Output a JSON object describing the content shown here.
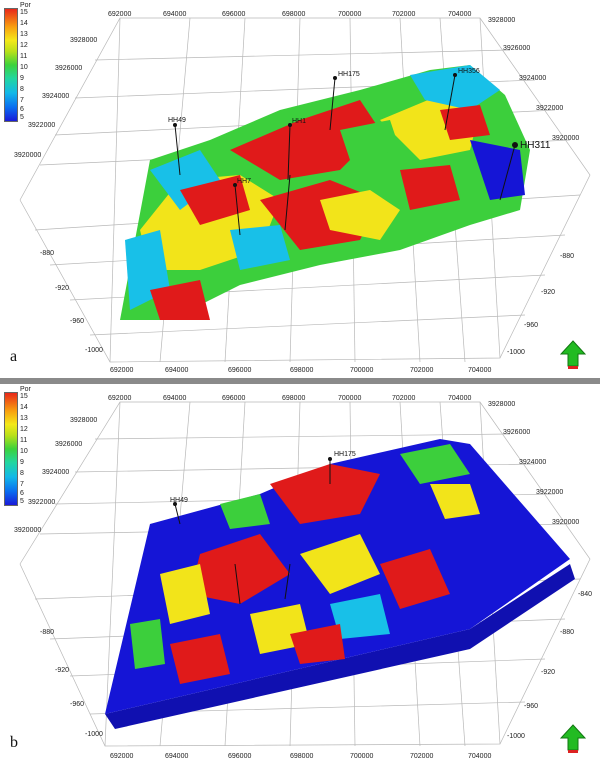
{
  "legend": {
    "title": "Por",
    "labels": [
      "15",
      "14",
      "13",
      "12",
      "11",
      "10",
      "9",
      "8",
      "7",
      "6",
      "5"
    ]
  },
  "axes": {
    "top_x": [
      "692000",
      "694000",
      "696000",
      "698000",
      "700000",
      "702000",
      "704000"
    ],
    "bottom_x": [
      "692000",
      "694000",
      "696000",
      "698000",
      "700000",
      "702000",
      "704000"
    ],
    "left_y": [
      "3928000",
      "3926000",
      "3924000",
      "3922000",
      "3920000"
    ],
    "right_y_a": [
      "3928000",
      "3926000",
      "3924000",
      "3922000",
      "3920000"
    ],
    "right_y_b": [
      "3928000",
      "3926000",
      "3924000",
      "3922000",
      "3920000"
    ],
    "depth_left": [
      "-880",
      "-920",
      "-960",
      "-1000"
    ],
    "depth_right_a": [
      "-880",
      "-920",
      "-960",
      "-1000"
    ],
    "depth_right_b": [
      "-840",
      "-880",
      "-920",
      "-960",
      "-1000"
    ]
  },
  "panel_a": {
    "letter": "a",
    "wells": [
      "HH49",
      "HH175",
      "HH356",
      "HH311",
      "HH1",
      "HH7"
    ]
  },
  "panel_b": {
    "letter": "b",
    "wells": [
      "HH49",
      "HH175"
    ]
  },
  "colors": {
    "red": "#e01a1a",
    "yellow": "#f2e41a",
    "green": "#3ccf3c",
    "cyan": "#18c0e8",
    "blue": "#1515d6",
    "north_green": "#22bb22",
    "north_red": "#dd2222"
  }
}
